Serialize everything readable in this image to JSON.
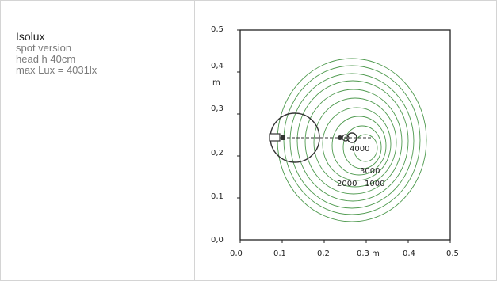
{
  "info": {
    "title": "Isolux",
    "lines": [
      "spot version",
      "head h 40cm",
      "max Lux = 4031lx"
    ]
  },
  "plot": {
    "x_ticks": [
      "0,0",
      "0,1",
      "0,2",
      "0,3 m",
      "0,4",
      "0,5"
    ],
    "y_ticks": [
      "0,0",
      "0,1",
      "0,2",
      "0,3",
      "0,4",
      "0,5"
    ],
    "y_unit": "m",
    "contour_labels": [
      "4000",
      "3000",
      "2000",
      "1000"
    ],
    "contour_color": "#4f9a4f"
  }
}
